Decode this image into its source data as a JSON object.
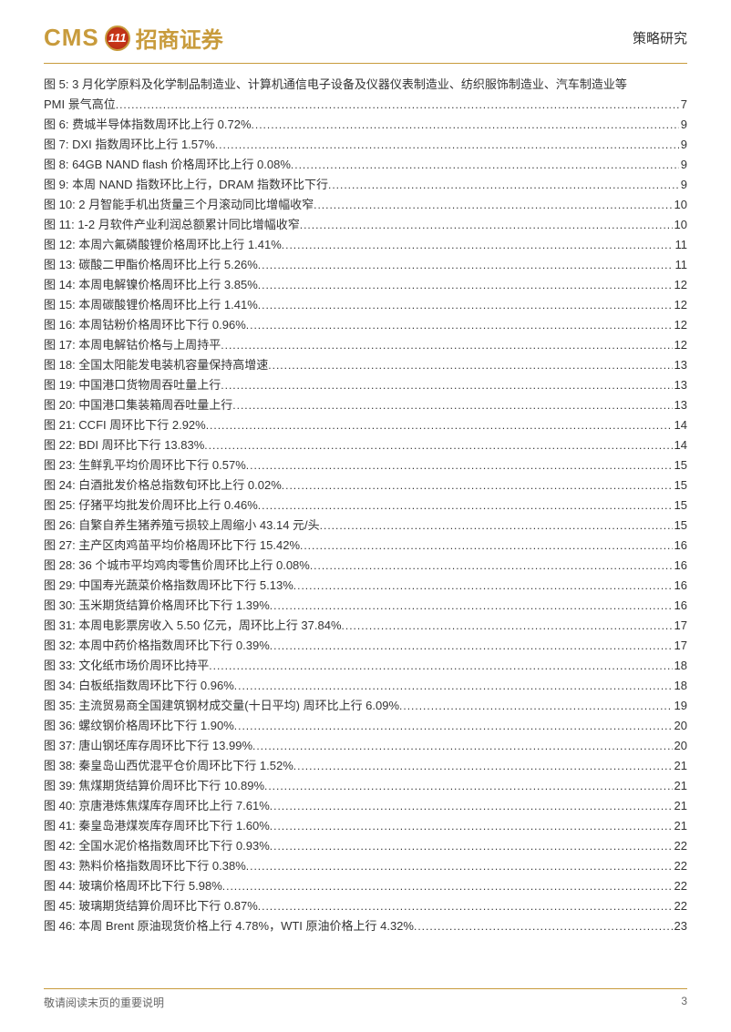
{
  "header": {
    "logo_cms": "CMS",
    "logo_num": "111",
    "logo_chinese": "招商证券",
    "right_text": "策略研究"
  },
  "toc": [
    {
      "num": "图 5:",
      "text": "3 月化学原料及化学制品制造业、计算机通信电子设备及仪器仪表制造业、纺织服饰制造业、汽车制造业等",
      "text2": "PMI 景气高位",
      "page": "7",
      "multi": true
    },
    {
      "num": "图 6:",
      "text": "费城半导体指数周环比上行 0.72%",
      "page": "9"
    },
    {
      "num": "图 7:",
      "text": "DXI 指数周环比上行 1.57%",
      "page": "9"
    },
    {
      "num": "图 8:",
      "text": "64GB NAND flash 价格周环比上行 0.08%",
      "page": "9"
    },
    {
      "num": "图 9:",
      "text": "本周 NAND 指数环比上行，DRAM 指数环比下行",
      "page": "9"
    },
    {
      "num": "图 10:",
      "text": "2 月智能手机出货量三个月滚动同比增幅收窄",
      "page": "10"
    },
    {
      "num": "图 11:",
      "text": "1-2 月软件产业利润总额累计同比增幅收窄",
      "page": "10"
    },
    {
      "num": "图 12:",
      "text": "本周六氟磷酸锂价格周环比上行 1.41%",
      "page": "11"
    },
    {
      "num": "图 13:",
      "text": "碳酸二甲酯价格周环比上行 5.26%",
      "page": "11"
    },
    {
      "num": "图 14:",
      "text": "本周电解镍价格周环比上行 3.85%",
      "page": "12"
    },
    {
      "num": "图 15:",
      "text": "本周碳酸锂价格周环比上行 1.41%",
      "page": "12"
    },
    {
      "num": "图 16:",
      "text": "本周钴粉价格周环比下行 0.96%",
      "page": "12"
    },
    {
      "num": "图 17:",
      "text": "本周电解钴价格与上周持平",
      "page": "12"
    },
    {
      "num": "图 18:",
      "text": "全国太阳能发电装机容量保持高增速",
      "page": "13"
    },
    {
      "num": "图 19:",
      "text": "中国港口货物周吞吐量上行",
      "page": "13"
    },
    {
      "num": "图 20:",
      "text": "中国港口集装箱周吞吐量上行",
      "page": "13"
    },
    {
      "num": "图 21:",
      "text": "CCFI 周环比下行 2.92%",
      "page": "14"
    },
    {
      "num": "图 22:",
      "text": "BDI 周环比下行 13.83%",
      "page": "14"
    },
    {
      "num": "图 23:",
      "text": "生鲜乳平均价周环比下行 0.57%",
      "page": "15"
    },
    {
      "num": "图 24:",
      "text": "白酒批发价格总指数旬环比上行 0.02%",
      "page": "15"
    },
    {
      "num": "图 25:",
      "text": "仔猪平均批发价周环比上行 0.46%",
      "page": "15"
    },
    {
      "num": "图 26:",
      "text": "自繁自养生猪养殖亏损较上周缩小 43.14 元/头",
      "page": "15"
    },
    {
      "num": "图 27:",
      "text": "主产区肉鸡苗平均价格周环比下行 15.42%",
      "page": "16"
    },
    {
      "num": "图 28:",
      "text": "36 个城市平均鸡肉零售价周环比上行 0.08%",
      "page": "16"
    },
    {
      "num": "图 29:",
      "text": "中国寿光蔬菜价格指数周环比下行 5.13%",
      "page": "16"
    },
    {
      "num": "图 30:",
      "text": "玉米期货结算价格周环比下行 1.39%",
      "page": "16"
    },
    {
      "num": "图 31:",
      "text": "本周电影票房收入 5.50 亿元，周环比上行 37.84%",
      "page": "17"
    },
    {
      "num": "图 32:",
      "text": "本周中药价格指数周环比下行 0.39%",
      "page": "17"
    },
    {
      "num": "图 33:",
      "text": "文化纸市场价周环比持平",
      "page": "18"
    },
    {
      "num": "图 34:",
      "text": "白板纸指数周环比下行 0.96%",
      "page": "18"
    },
    {
      "num": "图 35:",
      "text": "主流贸易商全国建筑钢材成交量(十日平均) 周环比上行 6.09%",
      "page": "19"
    },
    {
      "num": "图 36:",
      "text": "螺纹钢价格周环比下行 1.90%",
      "page": "20"
    },
    {
      "num": "图 37:",
      "text": "唐山钢坯库存周环比下行 13.99%",
      "page": "20"
    },
    {
      "num": "图 38:",
      "text": "秦皇岛山西优混平仓价周环比下行 1.52%",
      "page": "21"
    },
    {
      "num": "图 39:",
      "text": "焦煤期货结算价周环比下行 10.89%",
      "page": "21"
    },
    {
      "num": "图 40:",
      "text": "京唐港炼焦煤库存周环比上行 7.61%",
      "page": "21"
    },
    {
      "num": "图 41:",
      "text": "秦皇岛港煤炭库存周环比下行 1.60%",
      "page": "21"
    },
    {
      "num": "图 42:",
      "text": "全国水泥价格指数周环比下行 0.93%",
      "page": "22"
    },
    {
      "num": "图 43:",
      "text": "熟料价格指数周环比下行 0.38%",
      "page": "22"
    },
    {
      "num": "图 44:",
      "text": "玻璃价格周环比下行 5.98%",
      "page": "22"
    },
    {
      "num": "图 45:",
      "text": "玻璃期货结算价周环比下行 0.87%",
      "page": "22"
    },
    {
      "num": "图 46:",
      "text": "本周 Brent 原油现货价格上行 4.78%，WTI 原油价格上行 4.32%",
      "page": "23"
    }
  ],
  "footer": {
    "left": "敬请阅读末页的重要说明",
    "page": "3"
  }
}
